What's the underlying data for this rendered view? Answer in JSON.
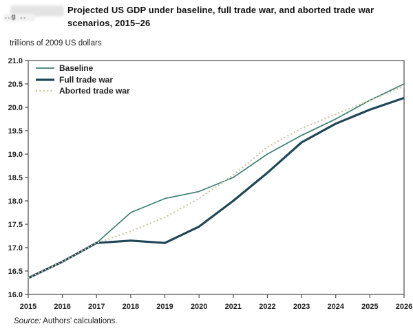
{
  "figure_label": {
    "visible_fragment": "..g  .."
  },
  "source": {
    "label": "Source:",
    "text": "Authors’ calculations."
  },
  "chart_data": {
    "type": "line",
    "title": "Projected US GDP under baseline, full trade war, and aborted trade war scenarios, 2015–26",
    "units_label": "trillions of 2009 US dollars",
    "grid": false,
    "legend_position": "top-left-inside",
    "x_range": [
      2015,
      2026
    ],
    "ylim": [
      16.0,
      21.0
    ],
    "x": [
      2015,
      2016,
      2017,
      2018,
      2019,
      2020,
      2021,
      2022,
      2023,
      2024,
      2025,
      2026
    ],
    "xtick_labels": [
      "2015",
      "2016",
      "2017",
      "2018",
      "2019",
      "2020",
      "2021",
      "2022",
      "2023",
      "2024",
      "2025",
      "2026"
    ],
    "ytick_labels": [
      "16.0",
      "16.5",
      "17.0",
      "17.5",
      "18.0",
      "18.5",
      "19.0",
      "19.5",
      "20.0",
      "20.5",
      "21.0"
    ],
    "axis_color": "#4a4a4a",
    "series": [
      {
        "name": "Baseline",
        "key": "baseline",
        "color": "#3C7E74",
        "width": 1.7,
        "dash": null,
        "values": [
          16.35,
          16.7,
          17.1,
          17.75,
          18.05,
          18.2,
          18.5,
          19.0,
          19.4,
          19.75,
          20.15,
          20.5
        ]
      },
      {
        "name": "Full trade war",
        "key": "full-trade-war",
        "color": "#1F4657",
        "width": 3.2,
        "dash": null,
        "values": [
          16.35,
          16.7,
          17.1,
          17.15,
          17.1,
          17.45,
          18.0,
          18.6,
          19.25,
          19.65,
          19.95,
          20.2
        ]
      },
      {
        "name": "Aborted trade war",
        "key": "aborted-trade-war",
        "color": "#CCC49B",
        "width": 2.2,
        "dash": "2 3.4",
        "values": [
          16.35,
          16.7,
          17.1,
          17.35,
          17.65,
          18.05,
          18.55,
          19.15,
          19.55,
          19.85,
          20.15,
          20.45
        ]
      }
    ]
  }
}
